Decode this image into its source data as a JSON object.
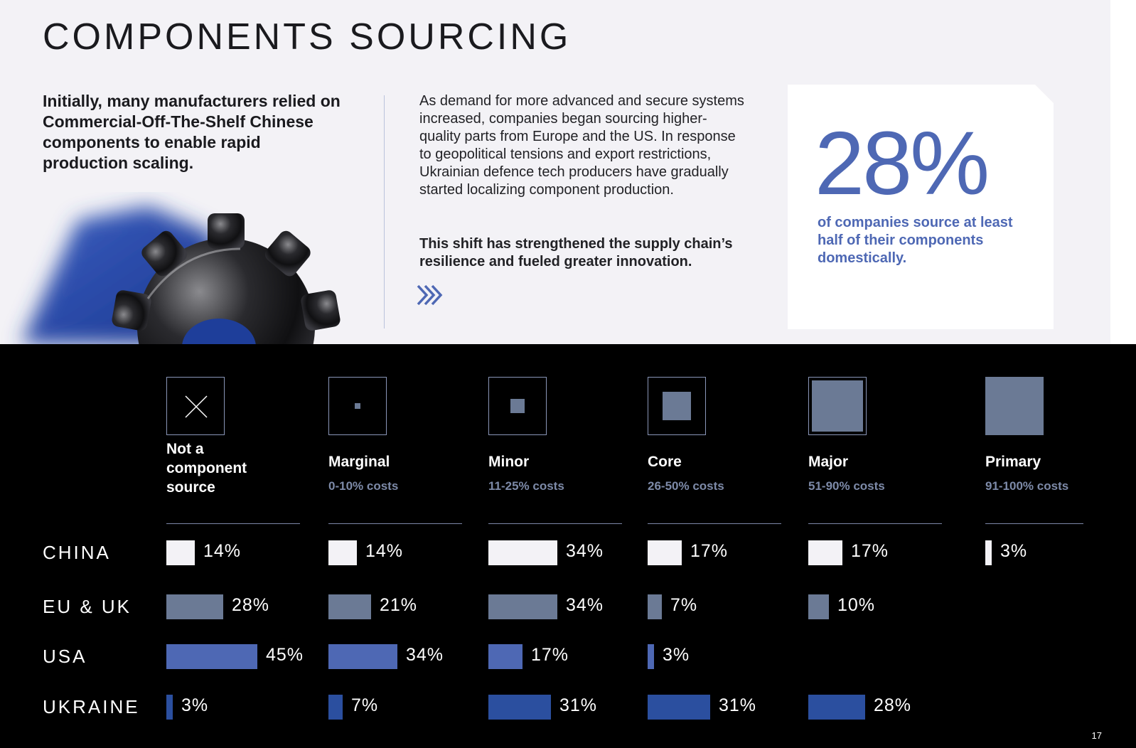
{
  "page": {
    "title": "COMPONENTS SOURCING",
    "intro": "Initially, many manufacturers relied on Commercial-Off-The-Shelf Chinese components to enable rapid production scaling.",
    "body": "As demand for more advanced and secure systems increased, companies began sourcing higher-quality parts from Europe and the US. In response to geopolitical tensions and export restrictions, Ukrainian defence tech producers have gradually started localizing component production.",
    "body_bold": "This shift has strengthened the supply chain’s resilience and fueled greater innovation.",
    "stat_value": "28%",
    "stat_caption": "of companies source at least half of their components domestically.",
    "page_number": "17"
  },
  "colors": {
    "CHINA": "#f3f2f6",
    "EU & UK": "#6b7a95",
    "USA": "#4e68b4",
    "UKRAINE": "#2b4f9f",
    "accent": "#4e68b4"
  },
  "icons": [
    "x-icon",
    "square-icon"
  ],
  "chart_data": {
    "type": "bar",
    "layout": "small-multiples",
    "categories": [
      {
        "label": "Not a component source",
        "range": ""
      },
      {
        "label": "Marginal",
        "range": "0-10% costs"
      },
      {
        "label": "Minor",
        "range": "11-25% costs"
      },
      {
        "label": "Core",
        "range": "26-50% costs"
      },
      {
        "label": "Major",
        "range": "51-90% costs"
      },
      {
        "label": "Primary",
        "range": "91-100% costs"
      }
    ],
    "series": [
      {
        "name": "CHINA",
        "values": [
          14,
          14,
          34,
          17,
          17,
          3
        ],
        "labels": [
          "14%",
          "14%",
          "34%",
          "17%",
          "17%",
          "3%"
        ]
      },
      {
        "name": "EU & UK",
        "values": [
          28,
          21,
          34,
          7,
          10,
          null
        ],
        "labels": [
          "28%",
          "21%",
          "34%",
          "7%",
          "10%",
          ""
        ]
      },
      {
        "name": "USA",
        "values": [
          45,
          34,
          17,
          3,
          null,
          null
        ],
        "labels": [
          "45%",
          "34%",
          "17%",
          "3%",
          "",
          ""
        ]
      },
      {
        "name": "UKRAINE",
        "values": [
          3,
          7,
          31,
          31,
          28,
          null
        ],
        "labels": [
          "3%",
          "7%",
          "31%",
          "31%",
          "28%",
          ""
        ]
      }
    ],
    "unit": "%"
  }
}
